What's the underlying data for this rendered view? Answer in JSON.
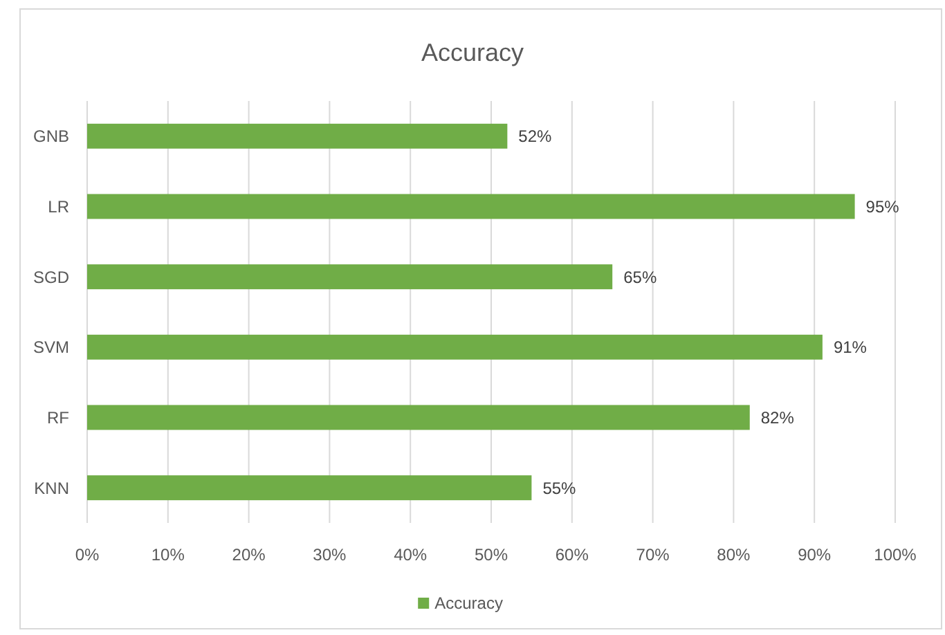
{
  "chart_data": {
    "type": "bar",
    "title": "Accuracy",
    "orientation": "horizontal",
    "categories": [
      "GNB",
      "LR",
      "SGD",
      "SVM",
      "RF",
      "KNN"
    ],
    "series": [
      {
        "name": "Accuracy",
        "color": "#70ad47",
        "values": [
          52,
          95,
          65,
          91,
          82,
          55
        ],
        "value_labels": [
          "52%",
          "95%",
          "65%",
          "91%",
          "82%",
          "55%"
        ]
      }
    ],
    "xlim": [
      0,
      100
    ],
    "xticks": [
      {
        "value": 0,
        "label": "0%"
      },
      {
        "value": 10,
        "label": "10%"
      },
      {
        "value": 20,
        "label": "20%"
      },
      {
        "value": 30,
        "label": "30%"
      },
      {
        "value": 40,
        "label": "40%"
      },
      {
        "value": 50,
        "label": "50%"
      },
      {
        "value": 60,
        "label": "60%"
      },
      {
        "value": 70,
        "label": "70%"
      },
      {
        "value": 80,
        "label": "80%"
      },
      {
        "value": 90,
        "label": "90%"
      },
      {
        "value": 100,
        "label": "100%"
      }
    ],
    "grid": "x",
    "legend": "bottom"
  }
}
